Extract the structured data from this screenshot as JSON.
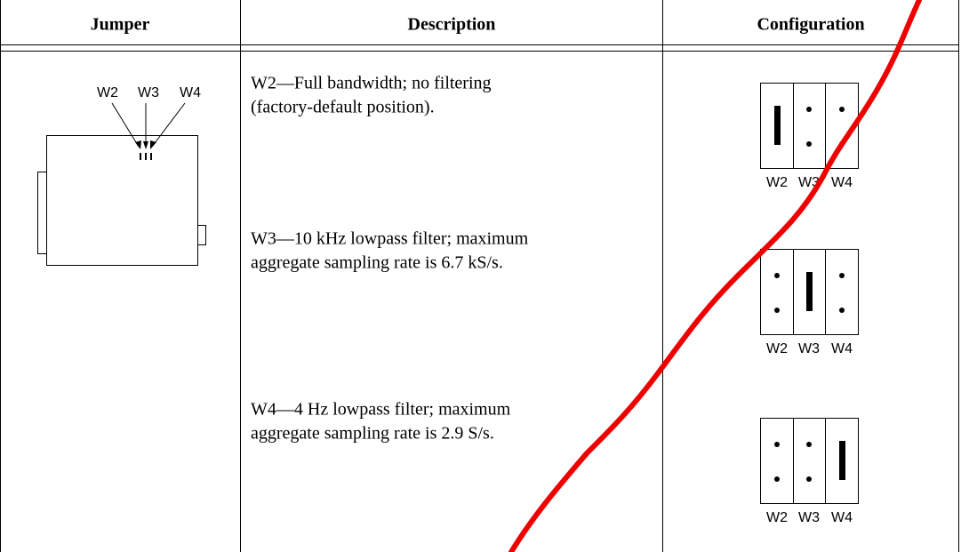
{
  "table": {
    "headers": [
      "Jumper",
      "Description",
      "Configuration"
    ],
    "jumper_labels": [
      "W2",
      "W3",
      "W4"
    ],
    "descriptions": [
      [
        "W2—Full bandwidth; no filtering",
        "(factory-default position)."
      ],
      [
        "W3—10 kHz lowpass filter; maximum",
        "aggregate sampling rate is 6.7 kS/s."
      ],
      [
        "W4—4 Hz lowpass filter; maximum",
        "aggregate sampling rate is 2.9 S/s."
      ]
    ],
    "configurations": [
      [
        "W2",
        "W3",
        "W4"
      ],
      [
        "W2",
        "W3",
        "W4"
      ],
      [
        "W2",
        "W3",
        "W4"
      ]
    ]
  }
}
